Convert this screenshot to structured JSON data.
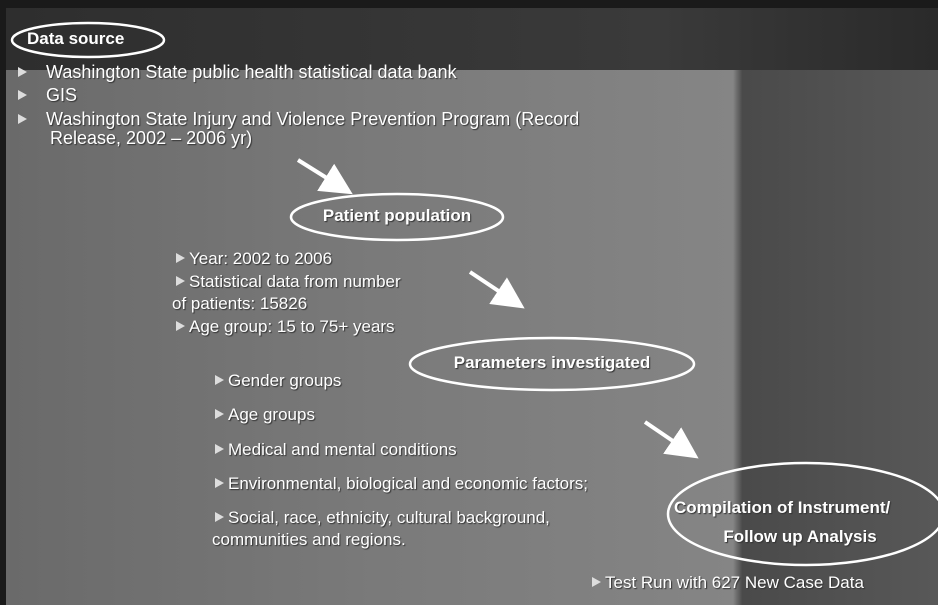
{
  "data_source": {
    "title": "Data source",
    "items": [
      [
        "Washington State public health statistical data bank"
      ],
      [
        "GIS"
      ],
      [
        "Washington State Injury and Violence Prevention Program (Record",
        "Release, 2002 – 2006 yr)"
      ]
    ]
  },
  "patient_population": {
    "title": "Patient population",
    "items": [
      [
        "Year: 2002 to 2006"
      ],
      [
        "Statistical data from number",
        "of patients: 15826"
      ],
      [
        "Age group: 15 to 75+ years"
      ]
    ]
  },
  "parameters_investigated": {
    "title": "Parameters investigated",
    "items": [
      [
        "Gender groups"
      ],
      [
        "Age groups"
      ],
      [
        "Medical and mental conditions"
      ],
      [
        "Environmental, biological and economic factors;"
      ],
      [
        "Social, race, ethnicity, cultural background,",
        "communities and regions."
      ]
    ]
  },
  "compilation": {
    "title_lines": [
      "Compilation of Instrument/",
      "Follow up Analysis"
    ]
  },
  "test_run": "Test Run with 627 New Case Data"
}
